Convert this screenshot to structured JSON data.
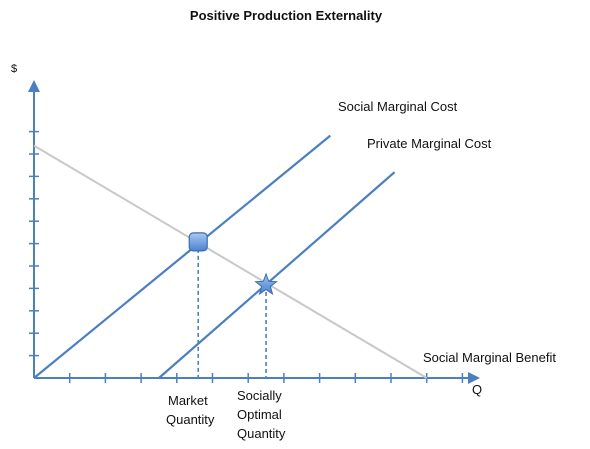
{
  "chart_data": {
    "type": "line",
    "title": "Positive Production Externality",
    "xlabel": "Q",
    "ylabel": "$",
    "series": [
      {
        "name": "Social Marginal Cost",
        "points": [
          [
            0,
            0
          ],
          [
            8.3,
            7.3
          ]
        ],
        "color": "#4a7fc1"
      },
      {
        "name": "Private Marginal Cost",
        "points": [
          [
            3.5,
            0
          ],
          [
            10.1,
            6.2
          ]
        ],
        "color": "#4a7fc1"
      },
      {
        "name": "Social Marginal Benefit",
        "points": [
          [
            0,
            7.0
          ],
          [
            11.0,
            0
          ]
        ],
        "color": "#c8c8c8"
      }
    ],
    "markers": [
      {
        "name": "market-equilibrium",
        "shape": "square",
        "x": 4.6,
        "y": 4.1
      },
      {
        "name": "social-optimum",
        "shape": "star",
        "x": 6.5,
        "y": 2.8
      }
    ],
    "annotations": [
      {
        "text_lines": [
          "Market",
          "Quantity"
        ],
        "x": 4.6
      },
      {
        "text_lines": [
          "Socially",
          "Optimal",
          "Quantity"
        ],
        "x": 6.5
      }
    ],
    "x_ticks": 12,
    "y_ticks": 11,
    "xlim": [
      0,
      12.4
    ],
    "ylim": [
      0,
      7.4
    ],
    "grid": false
  }
}
